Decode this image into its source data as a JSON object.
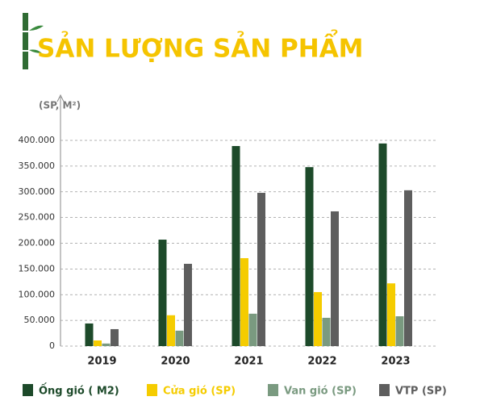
{
  "chart_data": {
    "type": "bar",
    "title": "SẢN LƯỢNG SẢN PHẨM",
    "y_label": "(SP, M²)",
    "categories": [
      "2019",
      "2020",
      "2021",
      "2022",
      "2023"
    ],
    "series": [
      {
        "name": "Ống gió ( M2)",
        "color": "#1d4a2a",
        "values": [
          44000,
          207000,
          389000,
          348000,
          394000
        ]
      },
      {
        "name": "Cửa gió (SP)",
        "color": "#f5cc00",
        "values": [
          11000,
          60000,
          171000,
          105000,
          122000
        ]
      },
      {
        "name": "Van gió (SP)",
        "color": "#7a9a80",
        "values": [
          5000,
          30000,
          63000,
          55000,
          58000
        ]
      },
      {
        "name": "VTP (SP)",
        "color": "#5e5e5e",
        "values": [
          33000,
          160000,
          298000,
          262000,
          303000
        ]
      }
    ],
    "ylim": [
      0,
      400000
    ],
    "yticks": [
      0,
      {
        "value": 50000,
        "label": "50.000"
      },
      {
        "value": 100000,
        "label": "100.000"
      },
      {
        "value": 150000,
        "label": "150.000"
      },
      {
        "value": 200000,
        "label": "200.000"
      },
      {
        "value": 250000,
        "label": "250.000"
      },
      {
        "value": 300000,
        "label": "300.000"
      },
      {
        "value": 350000,
        "label": "350.000"
      },
      {
        "value": 400000,
        "label": "400.000"
      }
    ],
    "grid": true
  }
}
